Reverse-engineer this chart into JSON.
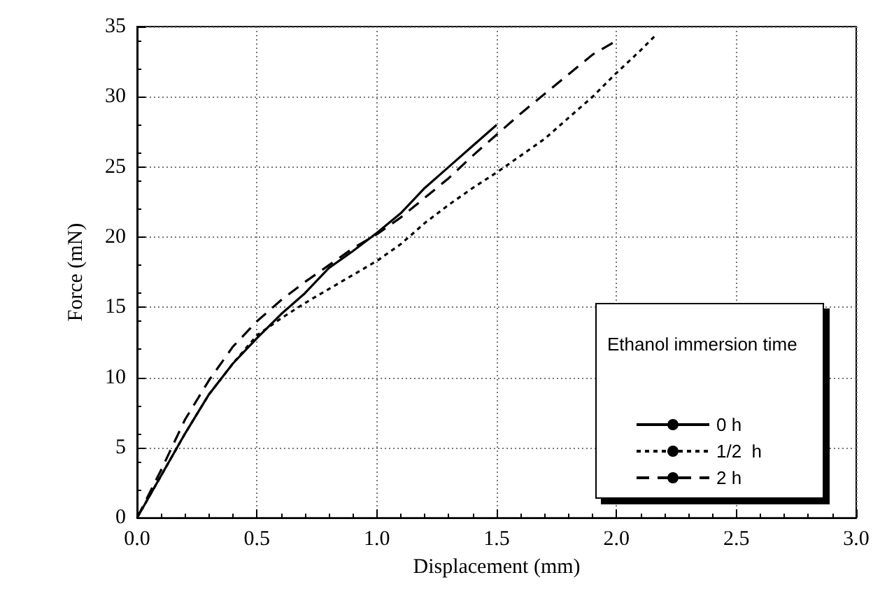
{
  "chart_data": {
    "type": "line",
    "xlabel": "Displacement (mm)",
    "ylabel": "Force (mN)",
    "legend_title": "Ethanol immersion time",
    "xlim": [
      0,
      3
    ],
    "xticks": [
      {
        "value": 0,
        "label": "0.0"
      },
      0.5,
      {
        "value": 1,
        "label": "1.0"
      },
      1.5,
      {
        "value": 2,
        "label": "2.0"
      },
      2.5,
      {
        "value": 3,
        "label": "3.0"
      }
    ],
    "ylim": [
      0,
      35
    ],
    "yticks": [
      0,
      5,
      10,
      15,
      20,
      25,
      30,
      35
    ],
    "grid": true,
    "legend": "bottom right",
    "marker": "none",
    "series": [
      {
        "name": "0 h",
        "color": "#000000",
        "line_style": "solid",
        "x": [
          0,
          0.1,
          0.2,
          0.3,
          0.4,
          0.5,
          0.6,
          0.7,
          0.8,
          0.9,
          1.0,
          1.1,
          1.2,
          1.3,
          1.4,
          1.5
        ],
        "values": [
          0,
          3,
          6,
          8.8,
          11,
          12.8,
          14.5,
          16,
          17.8,
          19,
          20.3,
          21.7,
          23.5,
          25,
          26.5,
          28
        ]
      },
      {
        "name": "1/2  h",
        "color": "#000000",
        "line_style": "dotted",
        "x": [
          0,
          0.1,
          0.2,
          0.3,
          0.4,
          0.5,
          0.6,
          0.7,
          0.8,
          0.9,
          1.0,
          1.1,
          1.2,
          1.3,
          1.4,
          1.5,
          1.6,
          1.7,
          1.8,
          1.9,
          2.0,
          2.1,
          2.17
        ],
        "values": [
          0,
          3,
          6,
          8.8,
          11,
          13,
          14.2,
          15.3,
          16.3,
          17.3,
          18.3,
          19.5,
          21,
          22.3,
          23.5,
          24.6,
          25.8,
          27,
          28.5,
          30,
          31.7,
          33.3,
          34.5
        ]
      },
      {
        "name": "2 h",
        "color": "#000000",
        "line_style": "dashed",
        "x": [
          0,
          0.1,
          0.2,
          0.3,
          0.4,
          0.5,
          0.6,
          0.7,
          0.8,
          0.9,
          1.0,
          1.1,
          1.2,
          1.3,
          1.4,
          1.5,
          1.6,
          1.7,
          1.8,
          1.9,
          2.0
        ],
        "values": [
          0,
          3.4,
          7,
          9.8,
          12.2,
          14,
          15.5,
          16.8,
          18,
          19.2,
          20.2,
          21.4,
          22.8,
          24.2,
          25.8,
          27.3,
          28.8,
          30.2,
          31.6,
          33,
          34
        ]
      }
    ]
  }
}
